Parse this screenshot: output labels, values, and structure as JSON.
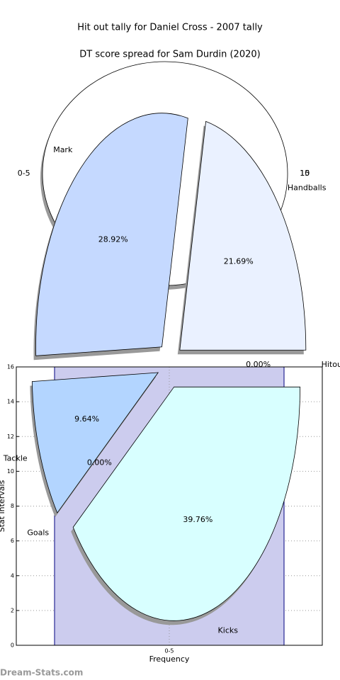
{
  "chart_data": [
    {
      "type": "bar",
      "xlabel": "Frequency",
      "ylabel": "Stat intervals",
      "categories": [
        "0-5"
      ],
      "values": [
        16
      ],
      "color": "#ccccee",
      "edgecolor": "#000080",
      "ylim": [
        0,
        16
      ],
      "yticks": [
        0,
        2,
        4,
        6,
        8,
        10,
        12,
        14,
        16
      ],
      "grid": true
    },
    {
      "type": "pie",
      "title": "Hit out tally for Daniel Cross - 2007 tally",
      "labels": [
        "0-5",
        "10",
        "15"
      ],
      "values": [
        100,
        0,
        0
      ],
      "colors": [
        "#ffffff",
        "#ffffff",
        "#ffffff"
      ],
      "shadow": true
    },
    {
      "type": "pie",
      "title": "DT score spread for Sam Durdin (2020)",
      "labels": [
        "Handballs",
        "Mark",
        "Tackle",
        "Goals",
        "Kicks",
        "Hitout"
      ],
      "values": [
        21.69,
        28.92,
        9.64,
        0.0,
        39.76,
        0.0
      ],
      "value_labels": [
        "21.69%",
        "28.92%",
        "9.64%",
        "0.00%",
        "39.76%",
        "0.00%"
      ],
      "colors": [
        "#eaf1ff",
        "#c5d9ff",
        "#b3d5ff",
        "#ffffff",
        "#d8ffff",
        "#ffffff"
      ],
      "shadow": true
    }
  ],
  "watermark": "Dream-Stats.com"
}
